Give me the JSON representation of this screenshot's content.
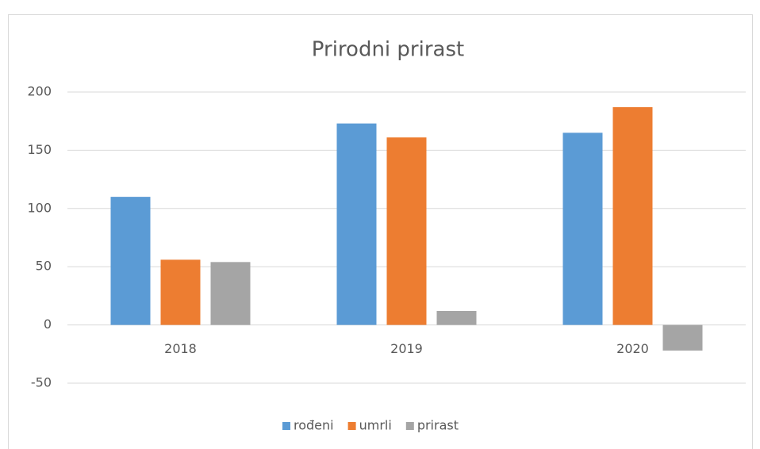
{
  "chart_data": {
    "type": "bar",
    "title": "Prirodni prirast",
    "categories": [
      "2018",
      "2019",
      "2020"
    ],
    "series": [
      {
        "name": "rođeni",
        "color": "#5b9bd5",
        "values": [
          110,
          173,
          165
        ]
      },
      {
        "name": "umrli",
        "color": "#ed7d31",
        "values": [
          56,
          161,
          187
        ]
      },
      {
        "name": "prirast",
        "color": "#a5a5a5",
        "values": [
          54,
          12,
          -22
        ]
      }
    ],
    "ylim": [
      -50,
      200
    ],
    "yticks": [
      -50,
      0,
      50,
      100,
      150,
      200
    ],
    "grid": true,
    "legend": "bottom"
  }
}
